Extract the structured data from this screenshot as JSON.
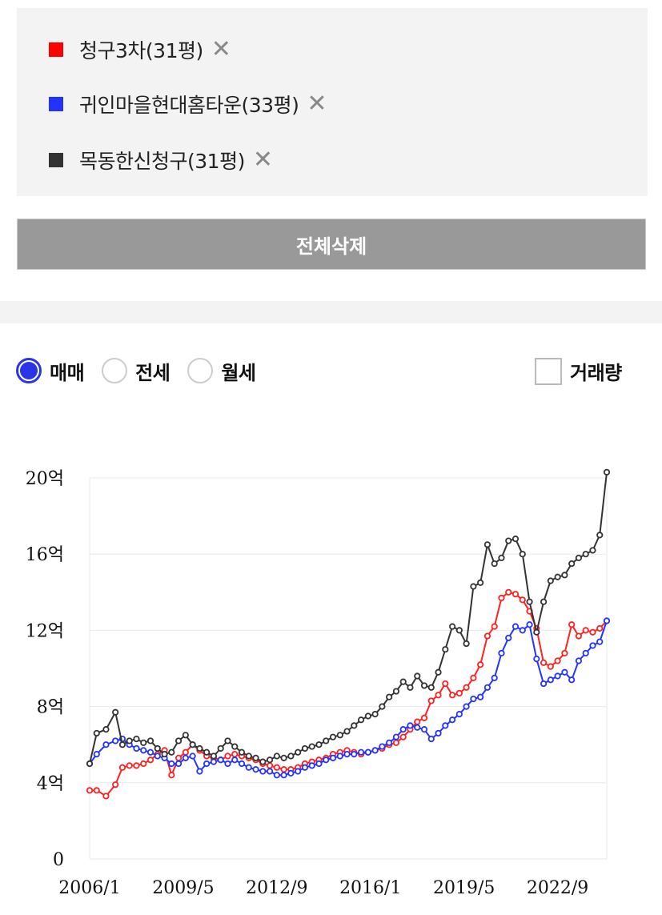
{
  "compare": {
    "items": [
      {
        "label": "청구3차(31평)",
        "color": "#ff0000"
      },
      {
        "label": "귀인마을현대홈타운(33평)",
        "color": "#2233ff"
      },
      {
        "label": "목동한신청구(31평)",
        "color": "#333333"
      }
    ],
    "remove_icon": "close-icon",
    "delete_all_label": "전체삭제"
  },
  "type_tabs": {
    "options": [
      "매매",
      "전세",
      "월세"
    ],
    "selected": "매매"
  },
  "volume_toggle": {
    "label": "거래량",
    "checked": false
  },
  "chart_data": {
    "type": "line",
    "y_ticks": [
      "0",
      "4억",
      "8억",
      "12억",
      "16억",
      "20억"
    ],
    "x_ticks": [
      "2006/1",
      "2009/5",
      "2012/9",
      "2016/1",
      "2019/5",
      "2022/9"
    ],
    "ylim": [
      0,
      20
    ],
    "xlim": [
      "2006-01",
      "2024-06"
    ],
    "grid": true,
    "y_unit": "억",
    "series": [
      {
        "name": "청구3차(31평)",
        "color": "#ff2020",
        "points": [
          [
            "2006-01",
            3.6
          ],
          [
            "2006-04",
            3.6
          ],
          [
            "2006-08",
            3.3
          ],
          [
            "2006-12",
            3.9
          ],
          [
            "2007-03",
            4.8
          ],
          [
            "2007-06",
            4.9
          ],
          [
            "2007-09",
            4.9
          ],
          [
            "2007-12",
            5.0
          ],
          [
            "2008-03",
            5.2
          ],
          [
            "2008-06",
            5.5
          ],
          [
            "2008-09",
            5.7
          ],
          [
            "2008-12",
            4.4
          ],
          [
            "2009-03",
            5.3
          ],
          [
            "2009-06",
            5.6
          ],
          [
            "2009-09",
            6.0
          ],
          [
            "2009-12",
            5.7
          ],
          [
            "2010-03",
            5.4
          ],
          [
            "2010-06",
            5.3
          ],
          [
            "2010-09",
            5.2
          ],
          [
            "2010-12",
            5.4
          ],
          [
            "2011-03",
            5.5
          ],
          [
            "2011-06",
            5.4
          ],
          [
            "2011-09",
            5.3
          ],
          [
            "2011-12",
            5.2
          ],
          [
            "2012-03",
            5.0
          ],
          [
            "2012-06",
            4.9
          ],
          [
            "2012-09",
            4.8
          ],
          [
            "2012-12",
            4.7
          ],
          [
            "2013-03",
            4.7
          ],
          [
            "2013-06",
            4.8
          ],
          [
            "2013-09",
            5.0
          ],
          [
            "2013-12",
            5.1
          ],
          [
            "2014-03",
            5.2
          ],
          [
            "2014-06",
            5.3
          ],
          [
            "2014-09",
            5.5
          ],
          [
            "2014-12",
            5.6
          ],
          [
            "2015-03",
            5.7
          ],
          [
            "2015-06",
            5.6
          ],
          [
            "2015-09",
            5.5
          ],
          [
            "2015-12",
            5.6
          ],
          [
            "2016-03",
            5.7
          ],
          [
            "2016-06",
            5.8
          ],
          [
            "2016-09",
            6.0
          ],
          [
            "2016-12",
            6.1
          ],
          [
            "2017-03",
            6.4
          ],
          [
            "2017-06",
            6.8
          ],
          [
            "2017-09",
            7.2
          ],
          [
            "2017-12",
            7.4
          ],
          [
            "2018-03",
            8.3
          ],
          [
            "2018-06",
            8.6
          ],
          [
            "2018-09",
            9.2
          ],
          [
            "2018-12",
            8.6
          ],
          [
            "2019-03",
            8.7
          ],
          [
            "2019-06",
            9.0
          ],
          [
            "2019-09",
            9.5
          ],
          [
            "2019-12",
            10.2
          ],
          [
            "2020-03",
            11.7
          ],
          [
            "2020-06",
            12.2
          ],
          [
            "2020-09",
            13.7
          ],
          [
            "2020-12",
            14.0
          ],
          [
            "2021-03",
            13.9
          ],
          [
            "2021-06",
            13.6
          ],
          [
            "2021-09",
            13.0
          ],
          [
            "2021-12",
            12.1
          ],
          [
            "2022-03",
            10.3
          ],
          [
            "2022-06",
            10.1
          ],
          [
            "2022-09",
            10.4
          ],
          [
            "2022-12",
            10.8
          ],
          [
            "2023-03",
            12.3
          ],
          [
            "2023-06",
            11.7
          ],
          [
            "2023-09",
            12.0
          ],
          [
            "2023-12",
            11.9
          ],
          [
            "2024-03",
            12.1
          ],
          [
            "2024-06",
            12.5
          ]
        ]
      },
      {
        "name": "귀인마을현대홈타운(33평)",
        "color": "#2233ff",
        "points": [
          [
            "2006-01",
            5.0
          ],
          [
            "2006-04",
            5.5
          ],
          [
            "2006-08",
            6.0
          ],
          [
            "2006-12",
            6.2
          ],
          [
            "2007-03",
            6.3
          ],
          [
            "2007-06",
            6.0
          ],
          [
            "2007-09",
            5.8
          ],
          [
            "2007-12",
            5.7
          ],
          [
            "2008-03",
            5.6
          ],
          [
            "2008-06",
            5.4
          ],
          [
            "2008-09",
            5.3
          ],
          [
            "2008-12",
            5.0
          ],
          [
            "2009-03",
            5.0
          ],
          [
            "2009-06",
            5.3
          ],
          [
            "2009-09",
            5.4
          ],
          [
            "2009-12",
            4.6
          ],
          [
            "2010-03",
            5.0
          ],
          [
            "2010-06",
            5.1
          ],
          [
            "2010-09",
            5.2
          ],
          [
            "2010-12",
            5.0
          ],
          [
            "2011-03",
            5.2
          ],
          [
            "2011-06",
            5.0
          ],
          [
            "2011-09",
            4.8
          ],
          [
            "2011-12",
            4.7
          ],
          [
            "2012-03",
            4.6
          ],
          [
            "2012-06",
            4.6
          ],
          [
            "2012-09",
            4.4
          ],
          [
            "2012-12",
            4.4
          ],
          [
            "2013-03",
            4.5
          ],
          [
            "2013-06",
            4.6
          ],
          [
            "2013-09",
            4.8
          ],
          [
            "2013-12",
            4.9
          ],
          [
            "2014-03",
            5.0
          ],
          [
            "2014-06",
            5.2
          ],
          [
            "2014-09",
            5.3
          ],
          [
            "2014-12",
            5.4
          ],
          [
            "2015-03",
            5.5
          ],
          [
            "2015-06",
            5.5
          ],
          [
            "2015-09",
            5.6
          ],
          [
            "2015-12",
            5.6
          ],
          [
            "2016-03",
            5.7
          ],
          [
            "2016-06",
            5.9
          ],
          [
            "2016-09",
            6.1
          ],
          [
            "2016-12",
            6.4
          ],
          [
            "2017-03",
            6.8
          ],
          [
            "2017-06",
            7.0
          ],
          [
            "2017-09",
            6.9
          ],
          [
            "2017-12",
            6.8
          ],
          [
            "2018-03",
            6.3
          ],
          [
            "2018-06",
            6.6
          ],
          [
            "2018-09",
            7.0
          ],
          [
            "2018-12",
            7.3
          ],
          [
            "2019-03",
            7.6
          ],
          [
            "2019-06",
            8.0
          ],
          [
            "2019-09",
            8.4
          ],
          [
            "2019-12",
            8.5
          ],
          [
            "2020-03",
            9.0
          ],
          [
            "2020-06",
            9.5
          ],
          [
            "2020-09",
            10.8
          ],
          [
            "2020-12",
            11.6
          ],
          [
            "2021-03",
            12.2
          ],
          [
            "2021-06",
            12.0
          ],
          [
            "2021-09",
            12.3
          ],
          [
            "2021-12",
            10.5
          ],
          [
            "2022-03",
            9.2
          ],
          [
            "2022-06",
            9.4
          ],
          [
            "2022-09",
            9.6
          ],
          [
            "2022-12",
            9.8
          ],
          [
            "2023-03",
            9.4
          ],
          [
            "2023-06",
            10.4
          ],
          [
            "2023-09",
            10.8
          ],
          [
            "2023-12",
            11.2
          ],
          [
            "2024-03",
            11.4
          ],
          [
            "2024-06",
            12.5
          ]
        ]
      },
      {
        "name": "목동한신청구(31평)",
        "color": "#333333",
        "points": [
          [
            "2006-01",
            5.0
          ],
          [
            "2006-04",
            6.6
          ],
          [
            "2006-08",
            6.8
          ],
          [
            "2006-12",
            7.7
          ],
          [
            "2007-03",
            6.0
          ],
          [
            "2007-06",
            6.2
          ],
          [
            "2007-09",
            6.3
          ],
          [
            "2007-12",
            6.1
          ],
          [
            "2008-03",
            6.2
          ],
          [
            "2008-06",
            5.8
          ],
          [
            "2008-09",
            5.5
          ],
          [
            "2008-12",
            5.6
          ],
          [
            "2009-03",
            6.2
          ],
          [
            "2009-06",
            6.5
          ],
          [
            "2009-09",
            6.0
          ],
          [
            "2009-12",
            5.8
          ],
          [
            "2010-03",
            5.6
          ],
          [
            "2010-06",
            5.4
          ],
          [
            "2010-09",
            5.8
          ],
          [
            "2010-12",
            6.2
          ],
          [
            "2011-03",
            5.9
          ],
          [
            "2011-06",
            5.6
          ],
          [
            "2011-09",
            5.4
          ],
          [
            "2011-12",
            5.3
          ],
          [
            "2012-03",
            5.1
          ],
          [
            "2012-06",
            5.2
          ],
          [
            "2012-09",
            5.4
          ],
          [
            "2012-12",
            5.3
          ],
          [
            "2013-03",
            5.4
          ],
          [
            "2013-06",
            5.6
          ],
          [
            "2013-09",
            5.8
          ],
          [
            "2013-12",
            5.9
          ],
          [
            "2014-03",
            6.0
          ],
          [
            "2014-06",
            6.2
          ],
          [
            "2014-09",
            6.4
          ],
          [
            "2014-12",
            6.5
          ],
          [
            "2015-03",
            6.7
          ],
          [
            "2015-06",
            7.0
          ],
          [
            "2015-09",
            7.3
          ],
          [
            "2015-12",
            7.5
          ],
          [
            "2016-03",
            7.6
          ],
          [
            "2016-06",
            8.0
          ],
          [
            "2016-09",
            8.5
          ],
          [
            "2016-12",
            8.8
          ],
          [
            "2017-03",
            9.3
          ],
          [
            "2017-06",
            9.0
          ],
          [
            "2017-09",
            9.6
          ],
          [
            "2017-12",
            9.1
          ],
          [
            "2018-03",
            9.0
          ],
          [
            "2018-06",
            9.8
          ],
          [
            "2018-09",
            11.0
          ],
          [
            "2018-12",
            12.2
          ],
          [
            "2019-03",
            12.0
          ],
          [
            "2019-06",
            11.3
          ],
          [
            "2019-09",
            14.3
          ],
          [
            "2019-12",
            14.5
          ],
          [
            "2020-03",
            16.5
          ],
          [
            "2020-06",
            15.5
          ],
          [
            "2020-09",
            15.8
          ],
          [
            "2020-12",
            16.7
          ],
          [
            "2021-03",
            16.8
          ],
          [
            "2021-06",
            16.0
          ],
          [
            "2021-09",
            13.5
          ],
          [
            "2021-12",
            11.9
          ],
          [
            "2022-03",
            13.5
          ],
          [
            "2022-06",
            14.6
          ],
          [
            "2022-09",
            14.8
          ],
          [
            "2022-12",
            14.9
          ],
          [
            "2023-03",
            15.5
          ],
          [
            "2023-06",
            15.8
          ],
          [
            "2023-09",
            16.0
          ],
          [
            "2023-12",
            16.2
          ],
          [
            "2024-03",
            17.0
          ],
          [
            "2024-06",
            20.3
          ]
        ]
      }
    ]
  }
}
